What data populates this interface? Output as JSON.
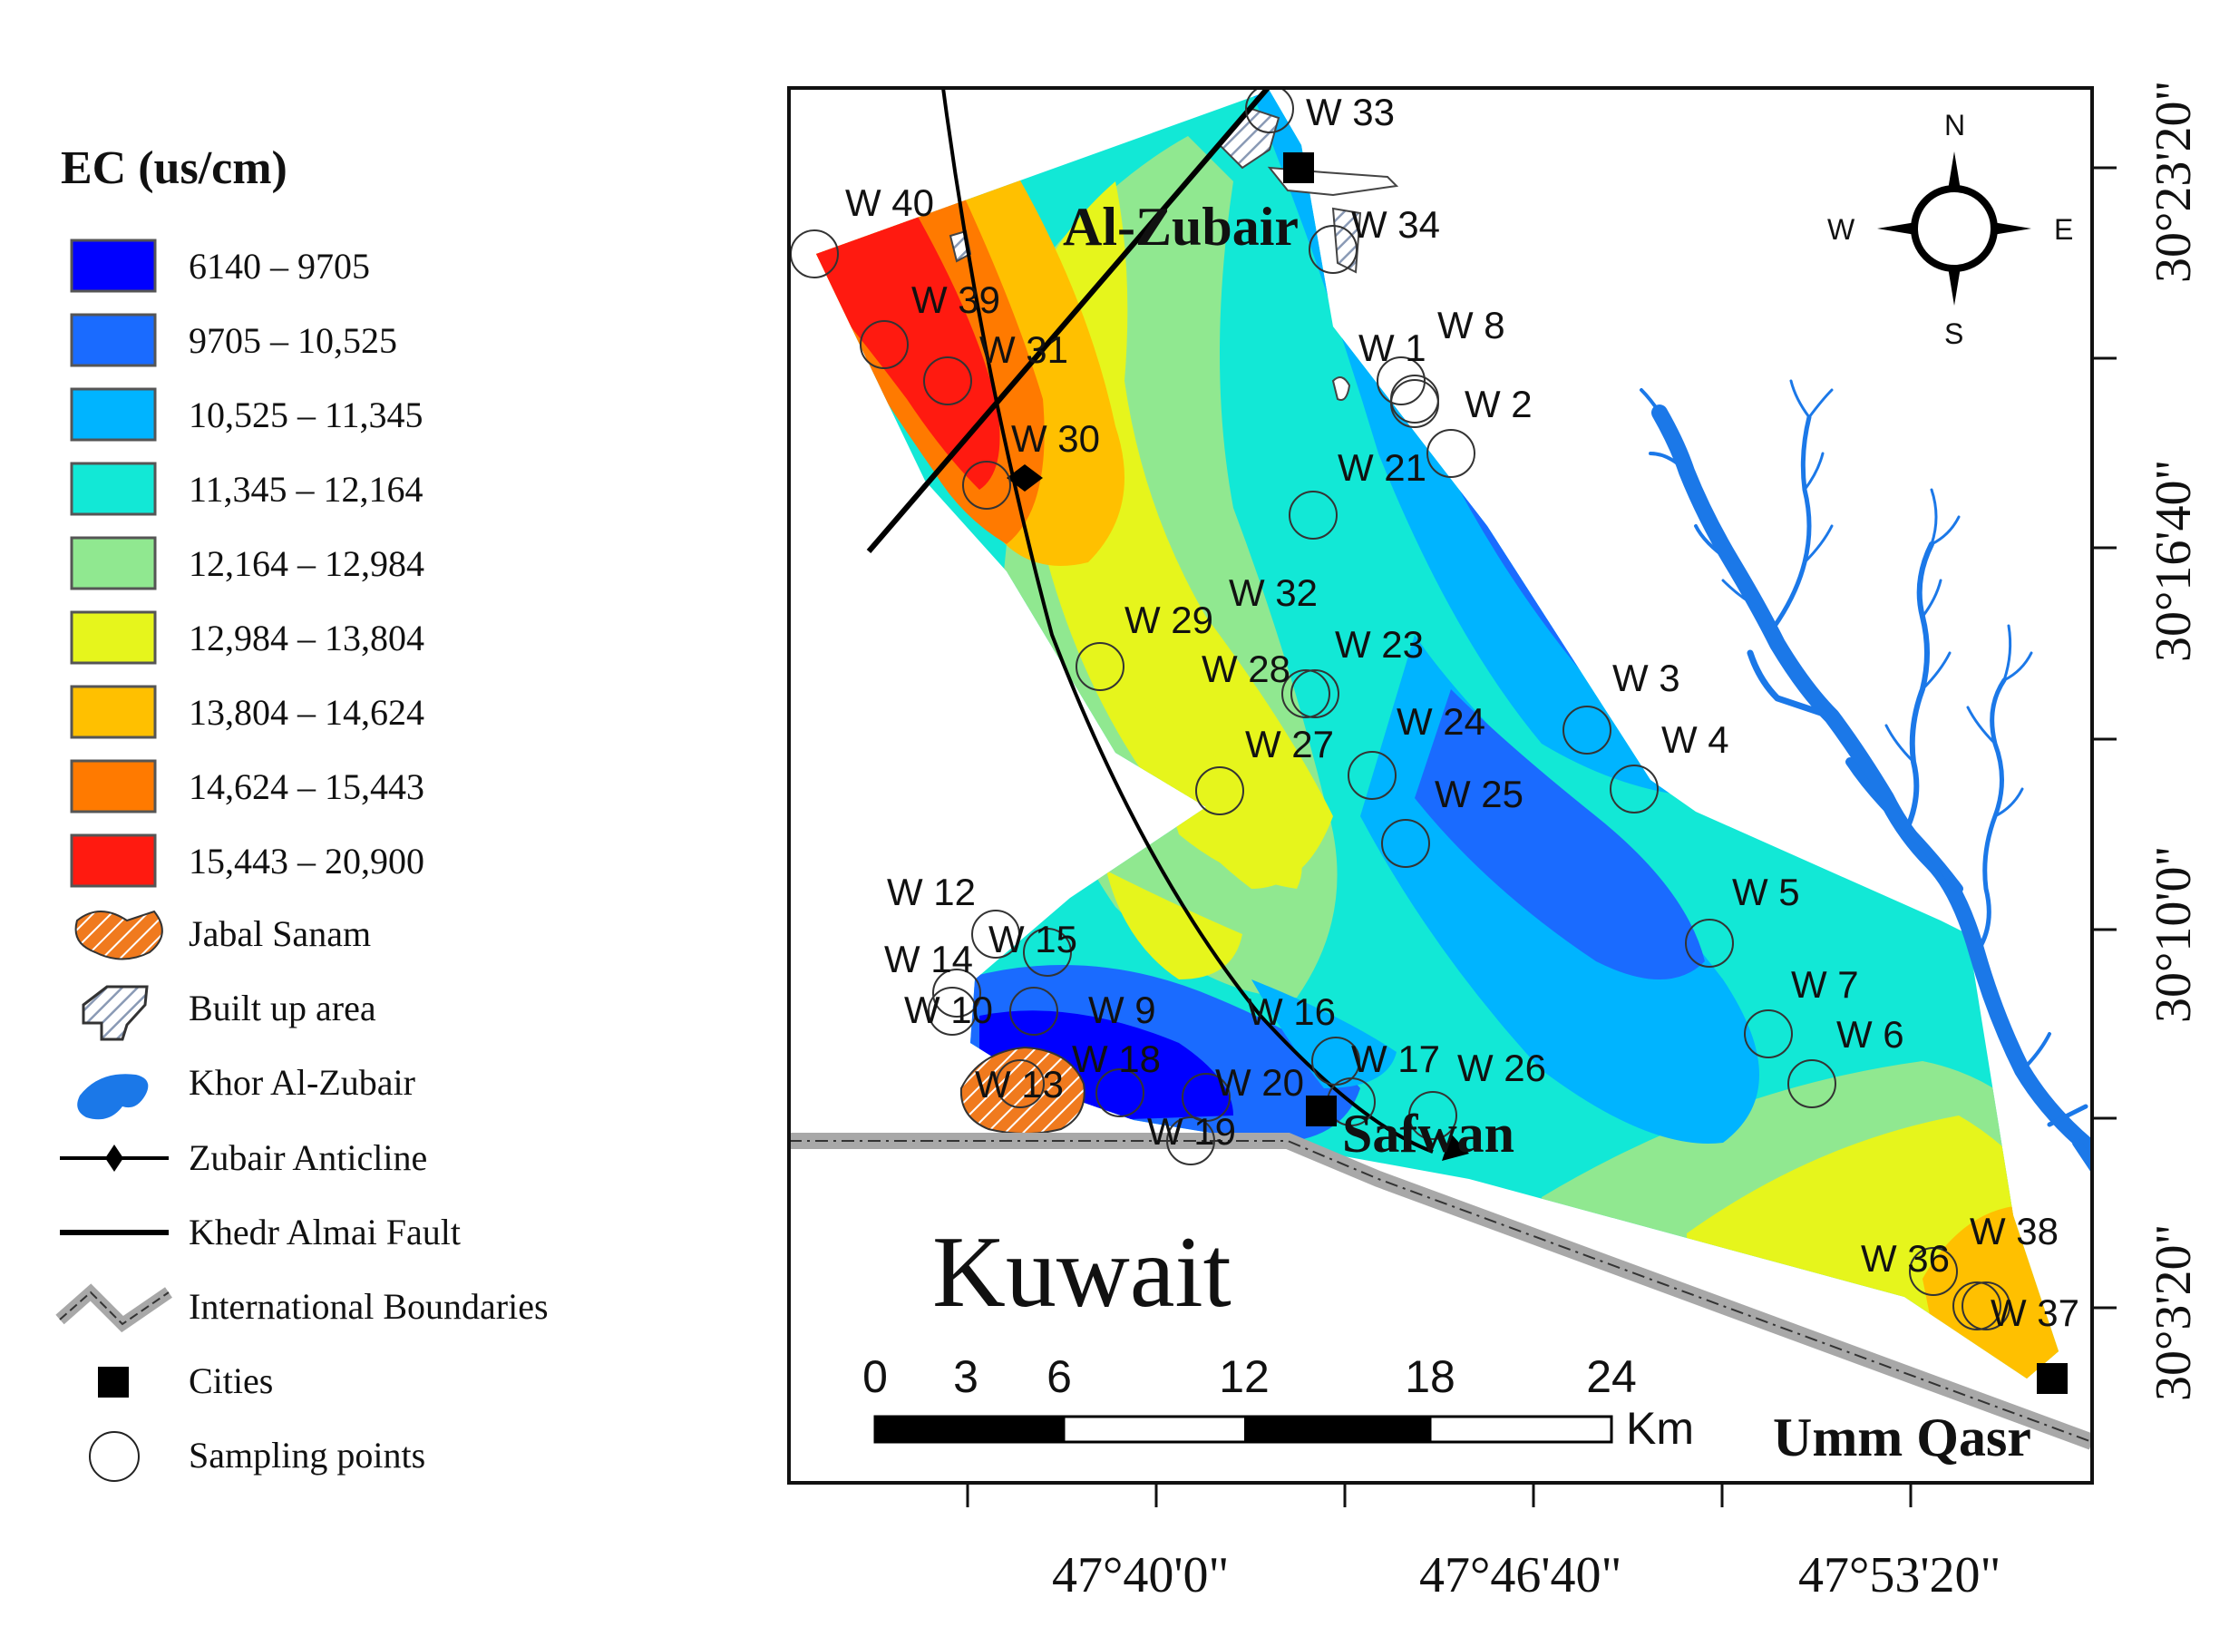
{
  "legend": {
    "title": "EC (us/cm)",
    "classes": [
      {
        "label": "6140 – 9705",
        "color": "#0000ff"
      },
      {
        "label": "9705 – 10,525",
        "color": "#1a6bff"
      },
      {
        "label": "10,525 – 11,345",
        "color": "#00b4ff"
      },
      {
        "label": "11,345 – 12,164",
        "color": "#12e8d6"
      },
      {
        "label": "12,164 – 12,984",
        "color": "#90e890"
      },
      {
        "label": "12,984 – 13,804",
        "color": "#e6f51c"
      },
      {
        "label": "13,804 – 14,624",
        "color": "#ffc000"
      },
      {
        "label": "14,624 – 15,443",
        "color": "#ff7a00"
      },
      {
        "label": "15,443 – 20,900",
        "color": "#ff1a10"
      }
    ],
    "symbols": [
      {
        "label": "Jabal Sanam",
        "icon": "hatched-orange-polygon-icon"
      },
      {
        "label": "Built up area",
        "icon": "hatched-grey-polygon-icon"
      },
      {
        "label": "Khor Al-Zubair",
        "icon": "blue-water-icon"
      },
      {
        "label": "Zubair Anticline",
        "icon": "line-with-diamond-icon"
      },
      {
        "label": "Khedr Almai Fault",
        "icon": "solid-line-icon"
      },
      {
        "label": "International Boundaries",
        "icon": "grey-double-line-icon"
      },
      {
        "label": "Cities",
        "icon": "black-square-icon"
      },
      {
        "label": "Sampling points",
        "icon": "hollow-circle-icon"
      }
    ]
  },
  "map": {
    "cities": [
      "Al-Zubair",
      "Safwan",
      "Umm Qasr"
    ],
    "country_label": "Kuwait",
    "wells": [
      {
        "id": "W 33"
      },
      {
        "id": "W 34"
      },
      {
        "id": "W 40"
      },
      {
        "id": "W 39"
      },
      {
        "id": "W 31"
      },
      {
        "id": "W 30"
      },
      {
        "id": "W 1"
      },
      {
        "id": "W 8"
      },
      {
        "id": "W 2"
      },
      {
        "id": "W 21"
      },
      {
        "id": "W 32"
      },
      {
        "id": "W 29"
      },
      {
        "id": "W 23"
      },
      {
        "id": "W 28"
      },
      {
        "id": "W 3"
      },
      {
        "id": "W 4"
      },
      {
        "id": "W 24"
      },
      {
        "id": "W 27"
      },
      {
        "id": "W 25"
      },
      {
        "id": "W 12"
      },
      {
        "id": "W 5"
      },
      {
        "id": "W 15"
      },
      {
        "id": "W 14"
      },
      {
        "id": "W 10"
      },
      {
        "id": "W 9"
      },
      {
        "id": "W 16"
      },
      {
        "id": "W 7"
      },
      {
        "id": "W 6"
      },
      {
        "id": "W 18"
      },
      {
        "id": "W 17"
      },
      {
        "id": "W 26"
      },
      {
        "id": "W 13"
      },
      {
        "id": "W 20"
      },
      {
        "id": "W 19"
      },
      {
        "id": "W 38"
      },
      {
        "id": "W 36"
      },
      {
        "id": "W 37"
      }
    ],
    "north_arrow": {
      "n": "N",
      "s": "S",
      "e": "E",
      "w": "W"
    },
    "scale_bar": {
      "ticks": [
        "0",
        "3",
        "6",
        "12",
        "18",
        "24"
      ],
      "unit": "Km"
    },
    "longitude_labels": [
      "47°40'0\"",
      "47°46'40\"",
      "47°53'20\""
    ],
    "latitude_labels": [
      "30°23'20\"",
      "30°16'40\"",
      "30°10'0\"",
      "30°3'20\""
    ]
  }
}
